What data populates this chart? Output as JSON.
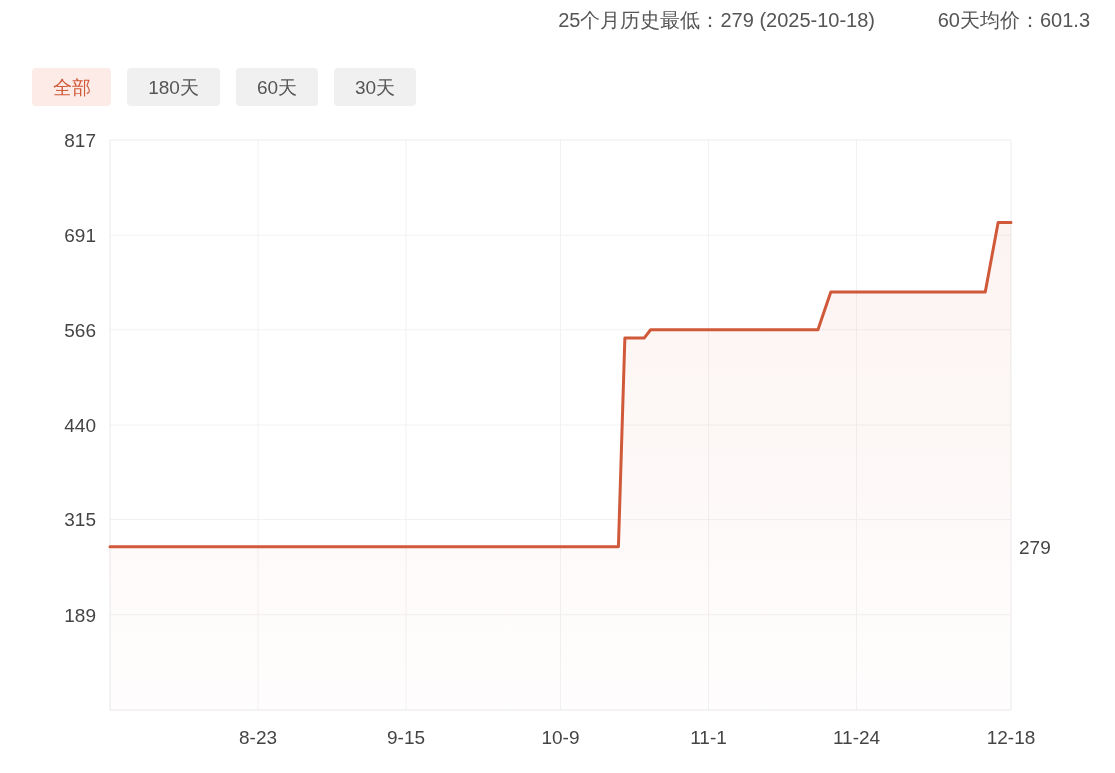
{
  "chart_data": {
    "type": "area",
    "title": "25个月历史最低：279 (2025-10-18)",
    "subtitle": "60天均价：601.3",
    "x": [
      "2025-07-31",
      "2025-10-18",
      "2025-10-19",
      "2025-10-22",
      "2025-10-23",
      "2025-11-18",
      "2025-11-20",
      "2025-12-14",
      "2025-12-16",
      "2025-12-18"
    ],
    "series": [
      {
        "color": "#d0593a",
        "values": [
          279,
          279,
          555,
          555,
          566,
          566,
          616,
          616,
          708,
          708
        ]
      }
    ],
    "xlim": [
      "2025-07-31",
      "2025-12-18"
    ],
    "xticks": [
      {
        "value": "2025-08-23",
        "label": "8-23"
      },
      {
        "value": "2025-09-15",
        "label": "9-15"
      },
      {
        "value": "2025-10-09",
        "label": "10-9"
      },
      {
        "value": "2025-11-01",
        "label": "11-1"
      },
      {
        "value": "2025-11-24",
        "label": "11-24"
      },
      {
        "value": "2025-12-18",
        "label": "12-18"
      }
    ],
    "ylim": [
      63,
      817
    ],
    "yticks": [
      817,
      691,
      566,
      440,
      315,
      189
    ],
    "grid": true,
    "marker": "none",
    "line_style": "solid",
    "annotations": [
      {
        "text": "279",
        "x": "2025-12-18",
        "y": 279
      },
      "全部",
      "180天",
      "60天",
      "30天"
    ]
  }
}
